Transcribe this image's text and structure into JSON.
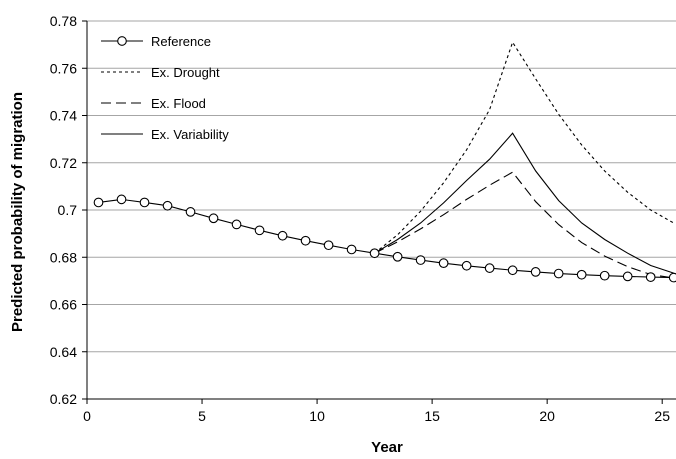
{
  "chart_data": {
    "type": "line",
    "xlabel": "Year",
    "ylabel": "Predicted probability of migration",
    "xlim": [
      0,
      25.6
    ],
    "ylim": [
      0.62,
      0.78
    ],
    "x_ticks": [
      0,
      5,
      10,
      15,
      20,
      25
    ],
    "y_ticks": [
      0.62,
      0.64,
      0.66,
      0.68,
      0.7,
      0.72,
      0.74,
      0.76,
      0.78
    ],
    "grid": "horizontal",
    "legend_position": "top-left",
    "series": [
      {
        "name": "Reference",
        "style": "solid-circle-markers",
        "x": [
          0.5,
          1.5,
          2.5,
          3.5,
          4.5,
          5.5,
          6.5,
          7.5,
          8.5,
          9.5,
          10.5,
          11.5,
          12.5,
          13.5,
          14.5,
          15.5,
          16.5,
          17.5,
          18.5,
          19.5,
          20.5,
          21.5,
          22.5,
          23.5,
          24.5,
          25.5
        ],
        "values": [
          0.7032,
          0.7045,
          0.7032,
          0.7018,
          0.6992,
          0.6965,
          0.6939,
          0.6914,
          0.6891,
          0.687,
          0.6851,
          0.6833,
          0.6817,
          0.6802,
          0.6788,
          0.6775,
          0.6764,
          0.6754,
          0.6745,
          0.6738,
          0.6731,
          0.6726,
          0.6722,
          0.6719,
          0.6716,
          0.6714
        ]
      },
      {
        "name": "Ex. Drought",
        "style": "dotted",
        "x": [
          12.5,
          13.5,
          14.5,
          15.5,
          16.5,
          17.5,
          18.5,
          19.5,
          20.5,
          21.5,
          22.5,
          23.5,
          24.5,
          25.5
        ],
        "values": [
          0.6817,
          0.6895,
          0.6995,
          0.7115,
          0.7255,
          0.7425,
          0.771,
          0.7555,
          0.7405,
          0.7275,
          0.7165,
          0.7075,
          0.7,
          0.6945
        ]
      },
      {
        "name": "Ex. Flood",
        "style": "dashed",
        "x": [
          12.5,
          13.5,
          14.5,
          15.5,
          16.5,
          17.5,
          18.5,
          19.5,
          20.5,
          21.5,
          22.5,
          23.5,
          24.5,
          25.5
        ],
        "values": [
          0.6817,
          0.6865,
          0.692,
          0.698,
          0.7045,
          0.7105,
          0.716,
          0.7035,
          0.6938,
          0.6862,
          0.6805,
          0.676,
          0.6727,
          0.6712
        ]
      },
      {
        "name": "Ex. Variability",
        "style": "solid",
        "x": [
          12.5,
          13.5,
          14.5,
          15.5,
          16.5,
          17.5,
          18.5,
          19.5,
          20.5,
          21.5,
          22.5,
          23.5,
          24.5,
          25.5
        ],
        "values": [
          0.6817,
          0.6875,
          0.6945,
          0.703,
          0.7125,
          0.7215,
          0.7325,
          0.7165,
          0.704,
          0.6945,
          0.6875,
          0.6817,
          0.6765,
          0.6733
        ]
      }
    ]
  },
  "colors": {
    "series": "#000000",
    "grid": "#a6a6a6",
    "axis": "#000000"
  }
}
